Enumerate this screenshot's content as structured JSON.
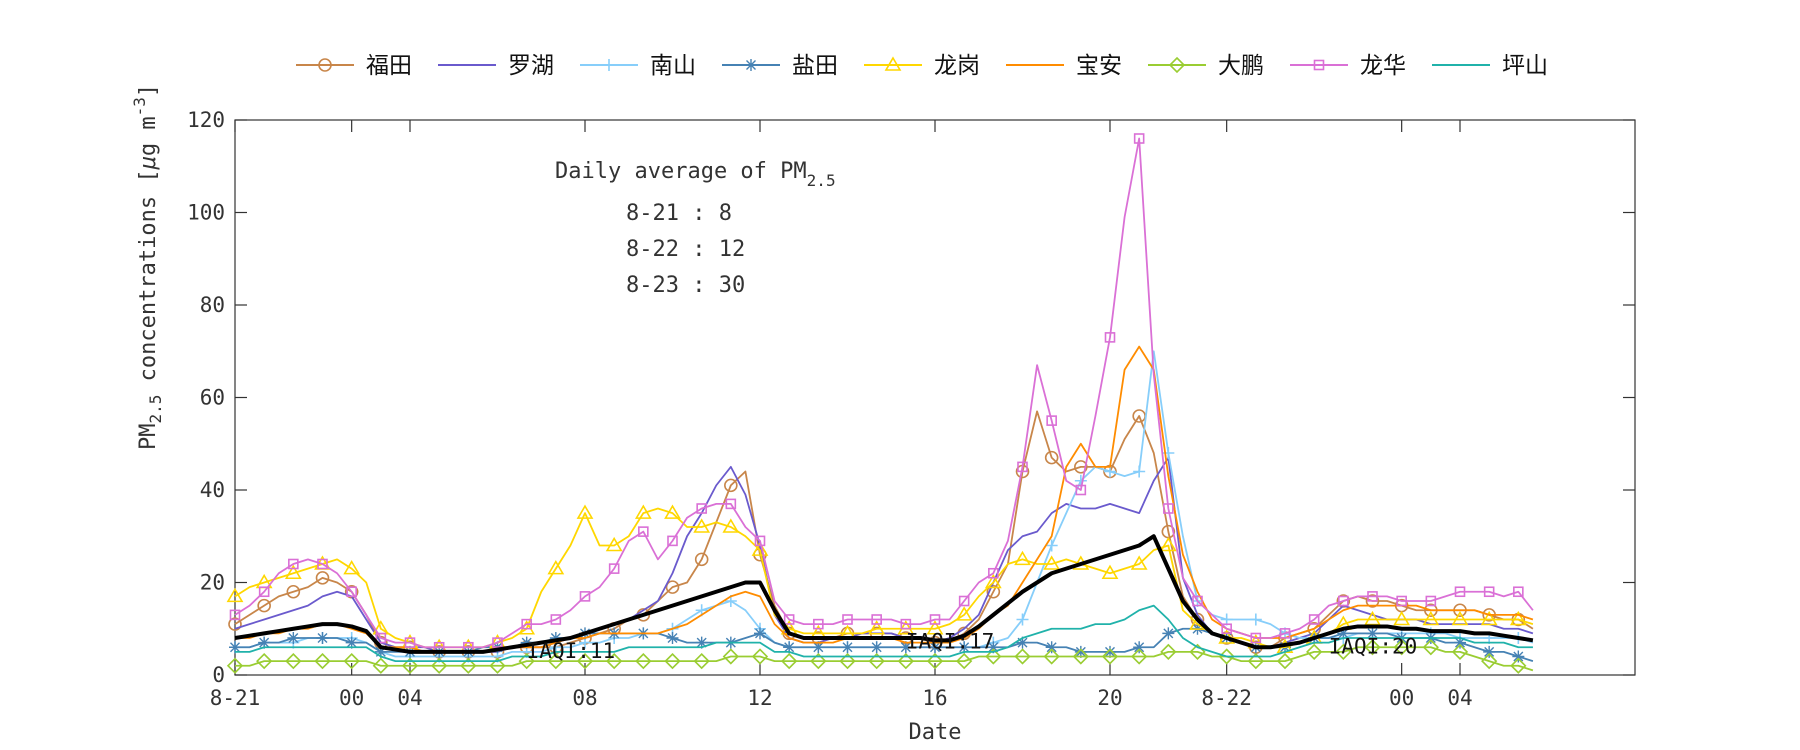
{
  "chart_data": {
    "type": "line",
    "xlabel": "Date",
    "ylabel_main": "PM",
    "ylabel_sub": "2.5",
    "ylabel_rest": " concentrations [",
    "ylabel_mu": "μ",
    "ylabel_unit": "g m",
    "ylabel_exp": "-3",
    "ylabel_close": "]",
    "ylim": [
      0,
      120
    ],
    "yticks": [
      0,
      20,
      40,
      60,
      80,
      100,
      120
    ],
    "xlim": [
      0,
      96
    ],
    "xticks": [
      {
        "x": 0,
        "label": "8-21"
      },
      {
        "x": 8,
        "label": "00"
      },
      {
        "x": 12,
        "label": "04"
      },
      {
        "x": 24,
        "label": "08"
      },
      {
        "x": 36,
        "label": "12"
      },
      {
        "x": 48,
        "label": "16"
      },
      {
        "x": 60,
        "label": "20"
      },
      {
        "x": 68,
        "label": "8-22"
      },
      {
        "x": 80,
        "label": "00"
      },
      {
        "x": 84,
        "label": "04"
      }
    ],
    "xtick_axis_hours": [
      0,
      8,
      12,
      24,
      36,
      48,
      60,
      68,
      80,
      84
    ],
    "note": "",
    "legend_position": "top",
    "annotation": {
      "title": "Daily average of PM",
      "title_sub": "2.5",
      "lines": [
        "8-21 : 8",
        "8-22 : 12",
        "8-23 : 30"
      ]
    },
    "iaqi_labels": [
      {
        "x": 20,
        "y": 5,
        "text": "IAQI:11"
      },
      {
        "x": 46,
        "y": 7,
        "text": "IAQI:17"
      },
      {
        "x": 75,
        "y": 6,
        "text": "IAQI:20"
      }
    ],
    "series": [
      {
        "name": "福田",
        "color": "#c8864a",
        "marker": "circle",
        "values": [
          11,
          13,
          15,
          17,
          18,
          19,
          21,
          20,
          18,
          13,
          7,
          6,
          6,
          5,
          5,
          5,
          5,
          5,
          5,
          6,
          6,
          6,
          6,
          7,
          8,
          9,
          10,
          12,
          13,
          16,
          19,
          20,
          25,
          33,
          41,
          44,
          26,
          15,
          9,
          8,
          8,
          8,
          9,
          9,
          9,
          9,
          8,
          8,
          7,
          7,
          9,
          12,
          18,
          24,
          44,
          57,
          47,
          44,
          45,
          45,
          44,
          51,
          56,
          48,
          31,
          17,
          12,
          9,
          8,
          7,
          6,
          6,
          8,
          9,
          10,
          13,
          16,
          17,
          16,
          16,
          15,
          14,
          14,
          14,
          14,
          14,
          13,
          12,
          12,
          10
        ]
      },
      {
        "name": "罗湖",
        "color": "#6a5acd",
        "marker": "none",
        "values": [
          10,
          11,
          12,
          13,
          14,
          15,
          17,
          18,
          17,
          12,
          7,
          6,
          6,
          6,
          5,
          5,
          5,
          5,
          5,
          6,
          6,
          6,
          7,
          8,
          9,
          10,
          11,
          12,
          14,
          16,
          22,
          30,
          35,
          41,
          45,
          39,
          28,
          13,
          8,
          7,
          7,
          8,
          8,
          9,
          9,
          9,
          8,
          8,
          7,
          8,
          10,
          13,
          20,
          27,
          30,
          31,
          35,
          37,
          36,
          36,
          37,
          36,
          35,
          42,
          47,
          21,
          13,
          9,
          8,
          7,
          6,
          6,
          7,
          8,
          9,
          12,
          15,
          14,
          13,
          12,
          12,
          12,
          11,
          11,
          11,
          11,
          11,
          10,
          10,
          9
        ]
      },
      {
        "name": "南山",
        "color": "#87cefa",
        "marker": "plus",
        "values": [
          6,
          6,
          7,
          7,
          7,
          8,
          8,
          8,
          8,
          7,
          5,
          4,
          4,
          4,
          4,
          4,
          4,
          4,
          4,
          5,
          5,
          5,
          6,
          6,
          7,
          7,
          8,
          8,
          9,
          9,
          10,
          12,
          14,
          15,
          16,
          14,
          10,
          7,
          6,
          6,
          6,
          6,
          6,
          6,
          6,
          6,
          6,
          6,
          6,
          6,
          6,
          6,
          7,
          8,
          12,
          20,
          28,
          35,
          42,
          45,
          44,
          43,
          44,
          70,
          48,
          30,
          16,
          13,
          12,
          12,
          12,
          11,
          9,
          8,
          8,
          8,
          8,
          9,
          9,
          9,
          9,
          9,
          9,
          9,
          8,
          8,
          8,
          8,
          8,
          7
        ]
      },
      {
        "name": "盐田",
        "color": "#4682b4",
        "marker": "star",
        "values": [
          6,
          6,
          7,
          7,
          8,
          8,
          8,
          8,
          7,
          7,
          5,
          5,
          5,
          5,
          5,
          5,
          5,
          6,
          6,
          6,
          7,
          7,
          8,
          8,
          9,
          9,
          9,
          9,
          9,
          9,
          8,
          7,
          7,
          7,
          7,
          8,
          9,
          7,
          6,
          6,
          6,
          6,
          6,
          6,
          6,
          6,
          6,
          6,
          6,
          6,
          6,
          6,
          6,
          6,
          7,
          7,
          6,
          6,
          5,
          5,
          5,
          5,
          6,
          6,
          9,
          10,
          10,
          9,
          8,
          7,
          6,
          6,
          6,
          7,
          8,
          8,
          9,
          9,
          9,
          9,
          8,
          8,
          8,
          7,
          7,
          6,
          5,
          5,
          4,
          3
        ]
      },
      {
        "name": "龙岗",
        "color": "#ffd700",
        "marker": "triangle",
        "values": [
          17,
          19,
          20,
          21,
          22,
          23,
          24,
          25,
          23,
          20,
          10,
          8,
          7,
          6,
          6,
          6,
          6,
          6,
          7,
          8,
          10,
          18,
          23,
          28,
          35,
          28,
          28,
          30,
          35,
          36,
          35,
          32,
          32,
          33,
          32,
          30,
          27,
          13,
          10,
          9,
          9,
          9,
          9,
          9,
          10,
          10,
          10,
          10,
          10,
          11,
          13,
          17,
          20,
          24,
          25,
          24,
          24,
          25,
          24,
          23,
          22,
          23,
          24,
          27,
          28,
          14,
          11,
          9,
          8,
          8,
          7,
          6,
          6,
          7,
          8,
          9,
          11,
          12,
          12,
          12,
          12,
          12,
          12,
          12,
          12,
          12,
          12,
          12,
          12,
          11
        ]
      },
      {
        "name": "宝安",
        "color": "#ff8c00",
        "marker": "none",
        "values": [
          8,
          8,
          9,
          9,
          10,
          10,
          11,
          11,
          10,
          9,
          6,
          6,
          6,
          5,
          5,
          5,
          5,
          5,
          6,
          6,
          6,
          6,
          7,
          8,
          8,
          9,
          9,
          9,
          9,
          9,
          10,
          11,
          13,
          15,
          17,
          18,
          17,
          11,
          8,
          7,
          7,
          7,
          8,
          8,
          8,
          8,
          7,
          7,
          7,
          7,
          8,
          10,
          13,
          15,
          20,
          25,
          30,
          45,
          50,
          45,
          45,
          66,
          71,
          66,
          43,
          26,
          18,
          12,
          10,
          9,
          8,
          8,
          8,
          9,
          10,
          12,
          14,
          15,
          15,
          15,
          15,
          15,
          14,
          14,
          14,
          14,
          13,
          13,
          13,
          12
        ]
      },
      {
        "name": "大鹏",
        "color": "#9acd32",
        "marker": "diamond",
        "values": [
          2,
          2,
          3,
          3,
          3,
          3,
          3,
          3,
          3,
          3,
          2,
          2,
          2,
          2,
          2,
          2,
          2,
          2,
          2,
          2,
          3,
          3,
          3,
          3,
          3,
          3,
          3,
          3,
          3,
          3,
          3,
          3,
          3,
          3,
          4,
          4,
          4,
          3,
          3,
          3,
          3,
          3,
          3,
          3,
          3,
          3,
          3,
          3,
          3,
          3,
          3,
          4,
          4,
          4,
          4,
          4,
          4,
          4,
          4,
          4,
          4,
          4,
          4,
          4,
          5,
          5,
          5,
          4,
          4,
          3,
          3,
          3,
          3,
          4,
          5,
          5,
          5,
          6,
          6,
          6,
          6,
          6,
          6,
          5,
          5,
          4,
          3,
          2,
          2,
          1
        ]
      },
      {
        "name": "龙华",
        "color": "#da70d6",
        "marker": "square",
        "values": [
          13,
          15,
          18,
          22,
          24,
          25,
          24,
          22,
          18,
          13,
          8,
          7,
          7,
          6,
          6,
          6,
          6,
          6,
          7,
          9,
          11,
          11,
          12,
          14,
          17,
          19,
          23,
          29,
          31,
          25,
          29,
          34,
          36,
          37,
          37,
          32,
          29,
          16,
          12,
          11,
          11,
          11,
          12,
          12,
          12,
          12,
          11,
          11,
          12,
          12,
          16,
          20,
          22,
          29,
          45,
          67,
          55,
          42,
          40,
          56,
          73,
          99,
          116,
          65,
          36,
          21,
          16,
          13,
          10,
          9,
          8,
          8,
          9,
          10,
          12,
          15,
          16,
          17,
          17,
          17,
          16,
          16,
          16,
          17,
          18,
          18,
          18,
          17,
          18,
          14
        ]
      },
      {
        "name": "坪山",
        "color": "#20b2aa",
        "marker": "none",
        "values": [
          5,
          5,
          6,
          6,
          6,
          6,
          6,
          6,
          6,
          6,
          4,
          3,
          3,
          3,
          3,
          3,
          3,
          3,
          3,
          4,
          4,
          4,
          5,
          5,
          5,
          5,
          5,
          6,
          6,
          6,
          6,
          6,
          6,
          7,
          7,
          7,
          7,
          5,
          5,
          4,
          4,
          4,
          4,
          4,
          4,
          4,
          4,
          4,
          4,
          4,
          5,
          5,
          5,
          6,
          8,
          9,
          10,
          10,
          10,
          11,
          11,
          12,
          14,
          15,
          12,
          8,
          6,
          5,
          4,
          4,
          4,
          4,
          5,
          6,
          7,
          7,
          8,
          8,
          8,
          8,
          8,
          8,
          8,
          8,
          8,
          7,
          7,
          7,
          6,
          6
        ]
      }
    ],
    "mean_series": {
      "color": "#000000",
      "values": [
        8,
        8.5,
        9,
        9.5,
        10,
        10.5,
        11,
        11,
        10.5,
        9.5,
        6,
        5.5,
        5,
        5,
        5,
        5,
        5,
        5,
        5.5,
        6,
        6.5,
        7,
        7.5,
        8,
        9,
        10,
        11,
        12,
        13,
        14,
        15,
        16,
        17,
        18,
        19,
        20,
        20,
        14,
        9,
        8,
        8,
        8,
        8,
        8,
        8,
        8,
        8,
        8,
        7.5,
        7.5,
        8.5,
        10.5,
        13,
        15.5,
        18,
        20,
        22,
        23,
        24,
        25,
        26,
        27,
        28,
        30,
        23,
        16,
        12,
        9,
        8,
        7,
        6,
        6,
        6.5,
        7,
        8,
        9,
        10,
        10.5,
        10.5,
        10.5,
        10,
        10,
        9.5,
        9.5,
        9.5,
        9,
        9,
        8.5,
        8,
        7.5
      ]
    }
  }
}
